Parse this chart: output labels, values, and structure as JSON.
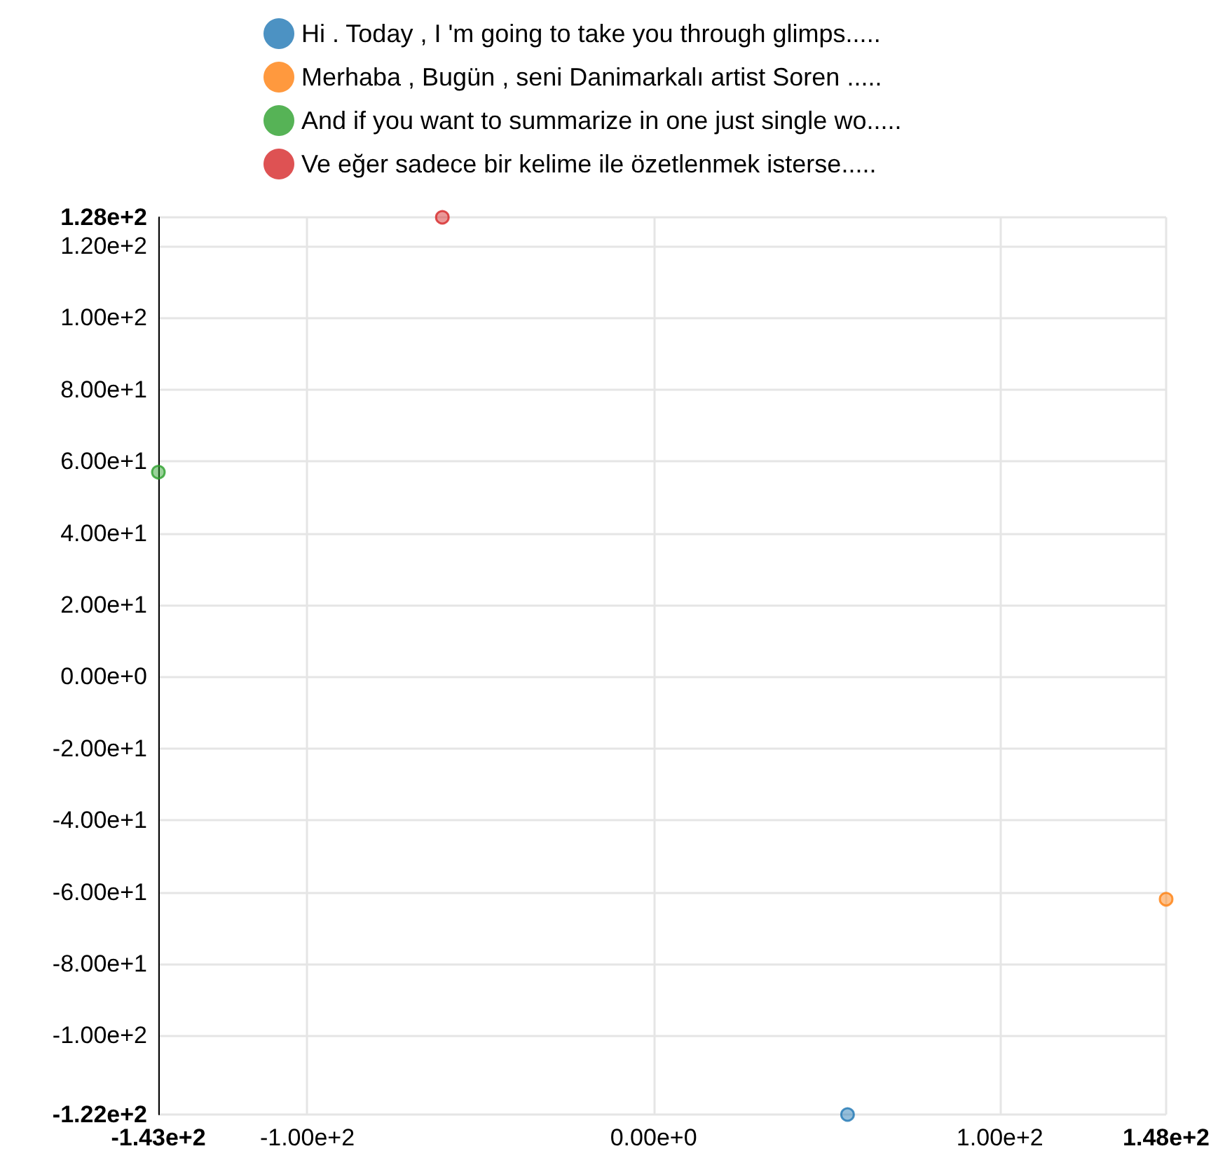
{
  "chart_data": {
    "type": "scatter",
    "legend": "top",
    "grid": true,
    "marker": "circle",
    "series": [
      {
        "name": "Hi . Today , I 'm going to take you through glimps.....",
        "color": "#1f77b4",
        "x": [
          56
        ],
        "values": [
          -122
        ]
      },
      {
        "name": "Merhaba , Bugün , seni Danimarkalı artist Soren .....",
        "color": "#ff7f0e",
        "x": [
          148
        ],
        "values": [
          -62
        ]
      },
      {
        "name": "And if you want to summarize in one just single wo.....",
        "color": "#2ca02c",
        "x": [
          -143
        ],
        "values": [
          57
        ]
      },
      {
        "name": "Ve eğer sadece bir kelime ile özetlenmek isterse.....",
        "color": "#d62728",
        "x": [
          -61
        ],
        "values": [
          128
        ]
      }
    ],
    "xlim": [
      -143,
      148
    ],
    "xticks": [
      {
        "value": -143,
        "label": "-1.43e+2"
      },
      {
        "value": -100,
        "label": "-1.00e+2"
      },
      {
        "value": 0,
        "label": "0.00e+0"
      },
      {
        "value": 100,
        "label": "1.00e+2"
      },
      {
        "value": 148,
        "label": "1.48e+2"
      }
    ],
    "ylim": [
      -122,
      128
    ],
    "yticks": [
      {
        "value": -122,
        "label": "-1.22e+2"
      },
      {
        "value": -100,
        "label": "-1.00e+2"
      },
      {
        "value": -80,
        "label": "-8.00e+1"
      },
      {
        "value": -60,
        "label": "-6.00e+1"
      },
      {
        "value": -40,
        "label": "-4.00e+1"
      },
      {
        "value": -20,
        "label": "-2.00e+1"
      },
      {
        "value": 0,
        "label": "0.00e+0"
      },
      {
        "value": 20,
        "label": "2.00e+1"
      },
      {
        "value": 40,
        "label": "4.00e+1"
      },
      {
        "value": 60,
        "label": "6.00e+1"
      },
      {
        "value": 80,
        "label": "8.00e+1"
      },
      {
        "value": 100,
        "label": "1.00e+2"
      },
      {
        "value": 120,
        "label": "1.20e+2"
      },
      {
        "value": 128,
        "label": "1.28e+2"
      }
    ]
  }
}
